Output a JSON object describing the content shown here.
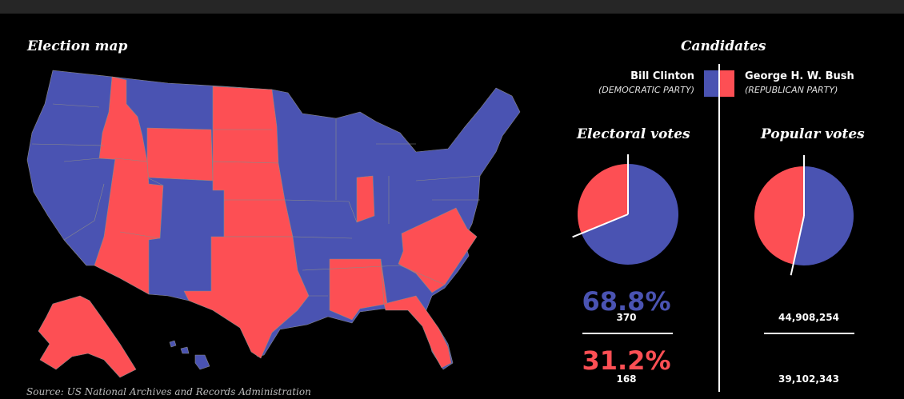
{
  "map_title": "Election map",
  "candidates_title": "Candidates",
  "candidates": [
    {
      "name": "Bill Clinton",
      "party": "(DEMOCRATIC PARTY)",
      "color": "#4a53b2"
    },
    {
      "name": "George H. W. Bush",
      "party": "(REPUBLICAN PARTY)",
      "color": "#fd4f54"
    }
  ],
  "electoral": {
    "title": "Electoral votes",
    "dem_pct": "68.8%",
    "dem_votes": "370",
    "rep_pct": "31.2%",
    "rep_votes": "168",
    "dem_share": 0.688
  },
  "popular": {
    "title": "Popular votes",
    "dem_votes": "44,908,254",
    "rep_votes": "39,102,343",
    "dem_share": 0.5346
  },
  "source": "Source:  US National Archives and Records Administration",
  "colors": {
    "democratic": "#4a53b2",
    "republican": "#fd4f54",
    "background": "#000000"
  }
}
